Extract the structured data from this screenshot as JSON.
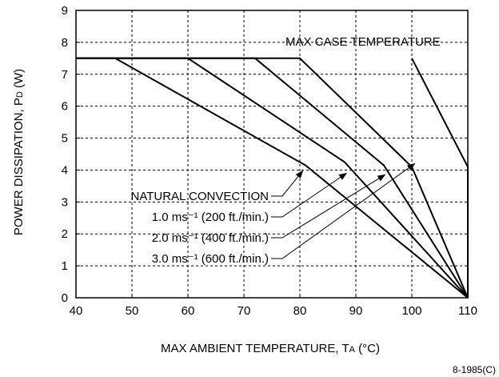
{
  "chart_data": {
    "type": "line",
    "xlabel": "MAX AMBIENT TEMPERATURE, T",
    "xlabel_sub": "A",
    "xlabel_unit": " (°C)",
    "ylabel": "POWER DISSIPATION, P",
    "ylabel_sub": "D",
    "ylabel_unit": " (W)",
    "xlim": [
      40,
      110
    ],
    "ylim": [
      0,
      9
    ],
    "x_ticks": [
      40,
      50,
      60,
      70,
      80,
      90,
      100,
      110
    ],
    "y_ticks": [
      0,
      1,
      2,
      3,
      4,
      5,
      6,
      7,
      8,
      9
    ],
    "grid": true,
    "series": [
      {
        "name": "NATURAL CONVECTION",
        "x": [
          40,
          47,
          81,
          110
        ],
        "y": [
          7.5,
          7.5,
          4.15,
          0
        ]
      },
      {
        "name": "1.0 ms⁻¹ (200 ft./min.)",
        "x": [
          40,
          60,
          88,
          110
        ],
        "y": [
          7.5,
          7.5,
          4.25,
          0
        ]
      },
      {
        "name": "2.0 ms⁻¹ (400 ft./min.)",
        "x": [
          40,
          72,
          95,
          110
        ],
        "y": [
          7.5,
          7.5,
          4.15,
          0
        ]
      },
      {
        "name": "3.0 ms⁻¹ (600 ft./min.)",
        "x": [
          40,
          80,
          100,
          110
        ],
        "y": [
          7.5,
          7.5,
          4.1,
          0
        ]
      },
      {
        "name": "MAX CASE TEMPERATURE",
        "x": [
          100,
          110,
          110
        ],
        "y": [
          7.5,
          4.1,
          0
        ]
      }
    ],
    "annotations": [
      {
        "text": "MAX CASE TEMPERATURE",
        "series": 4
      },
      {
        "text": "NATURAL CONVECTION",
        "series": 0
      },
      {
        "text": "1.0 ms⁻¹ (200 ft./min.)",
        "series": 1
      },
      {
        "text": "2.0 ms⁻¹ (400 ft./min.)",
        "series": 2
      },
      {
        "text": "3.0 ms⁻¹ (600 ft./min.)",
        "series": 3
      }
    ],
    "figure_id": "8-1985(C)"
  }
}
